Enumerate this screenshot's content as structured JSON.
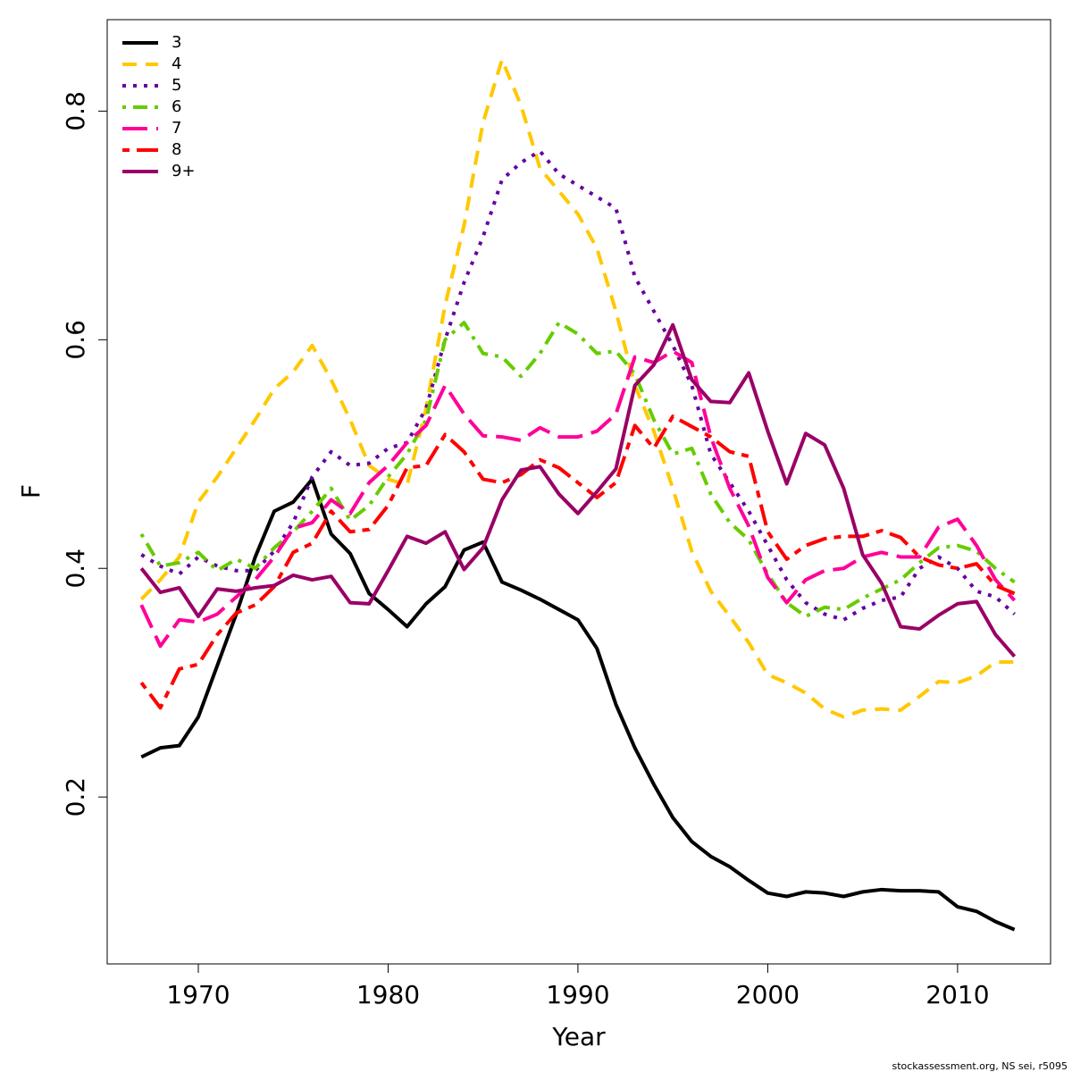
{
  "chart_data": {
    "type": "line",
    "x_label": "Year",
    "y_label": "F",
    "footnote": "stockassessment.org, NS sei, r5095",
    "legend": "top-left",
    "grid": false,
    "x": [
      1967,
      1968,
      1969,
      1970,
      1971,
      1972,
      1973,
      1974,
      1975,
      1976,
      1977,
      1978,
      1979,
      1980,
      1981,
      1982,
      1983,
      1984,
      1985,
      1986,
      1987,
      1988,
      1989,
      1990,
      1991,
      1992,
      1993,
      1994,
      1995,
      1996,
      1997,
      1998,
      1999,
      2000,
      2001,
      2002,
      2003,
      2004,
      2005,
      2006,
      2007,
      2008,
      2009,
      2010,
      2011,
      2012,
      2013
    ],
    "xlim": [
      1965.2,
      2014.9
    ],
    "xticks": [
      1970,
      1980,
      1990,
      2000,
      2010
    ],
    "ylim": [
      0.054,
      0.88
    ],
    "yticks": [
      0.2,
      0.4,
      0.6,
      0.8
    ],
    "series": [
      {
        "name": "3",
        "color": "#000000",
        "line_style": "solid",
        "values": [
          0.235,
          0.243,
          0.245,
          0.27,
          0.315,
          0.36,
          0.41,
          0.45,
          0.458,
          0.478,
          0.43,
          0.413,
          0.378,
          0.364,
          0.349,
          0.369,
          0.384,
          0.416,
          0.423,
          0.388,
          0.381,
          0.373,
          0.364,
          0.355,
          0.33,
          0.281,
          0.243,
          0.211,
          0.182,
          0.161,
          0.148,
          0.139,
          0.127,
          0.116,
          0.113,
          0.117,
          0.116,
          0.113,
          0.117,
          0.119,
          0.118,
          0.118,
          0.117,
          0.104,
          0.1,
          0.091,
          0.084
        ]
      },
      {
        "name": "4",
        "color": "#ffc800",
        "line_style": "dashed",
        "values": [
          0.373,
          0.39,
          0.41,
          0.458,
          0.48,
          0.505,
          0.53,
          0.557,
          0.572,
          0.595,
          0.565,
          0.53,
          0.49,
          0.478,
          0.473,
          0.54,
          0.63,
          0.7,
          0.79,
          0.845,
          0.805,
          0.75,
          0.73,
          0.71,
          0.68,
          0.625,
          0.56,
          0.52,
          0.47,
          0.415,
          0.38,
          0.358,
          0.335,
          0.307,
          0.3,
          0.291,
          0.277,
          0.27,
          0.276,
          0.277,
          0.276,
          0.288,
          0.301,
          0.3,
          0.306,
          0.318,
          0.318
        ]
      },
      {
        "name": "5",
        "color": "#6600a0",
        "line_style": "dotted",
        "values": [
          0.412,
          0.402,
          0.395,
          0.41,
          0.402,
          0.398,
          0.398,
          0.415,
          0.44,
          0.48,
          0.502,
          0.49,
          0.492,
          0.505,
          0.51,
          0.54,
          0.6,
          0.65,
          0.69,
          0.74,
          0.755,
          0.765,
          0.745,
          0.735,
          0.725,
          0.715,
          0.655,
          0.625,
          0.595,
          0.56,
          0.5,
          0.475,
          0.45,
          0.42,
          0.39,
          0.37,
          0.36,
          0.355,
          0.365,
          0.372,
          0.375,
          0.4,
          0.41,
          0.4,
          0.38,
          0.375,
          0.36
        ]
      },
      {
        "name": "6",
        "color": "#66cc00",
        "line_style": "dotdash",
        "values": [
          0.43,
          0.402,
          0.405,
          0.414,
          0.398,
          0.408,
          0.4,
          0.418,
          0.432,
          0.45,
          0.47,
          0.442,
          0.455,
          0.48,
          0.5,
          0.53,
          0.6,
          0.615,
          0.588,
          0.585,
          0.568,
          0.588,
          0.615,
          0.605,
          0.588,
          0.59,
          0.57,
          0.53,
          0.5,
          0.505,
          0.465,
          0.44,
          0.425,
          0.395,
          0.37,
          0.358,
          0.366,
          0.364,
          0.374,
          0.382,
          0.39,
          0.405,
          0.418,
          0.42,
          0.415,
          0.4,
          0.388
        ]
      },
      {
        "name": "7",
        "color": "#ff0099",
        "line_style": "longdash",
        "values": [
          0.368,
          0.332,
          0.355,
          0.353,
          0.36,
          0.375,
          0.39,
          0.41,
          0.435,
          0.44,
          0.46,
          0.448,
          0.475,
          0.49,
          0.51,
          0.525,
          0.56,
          0.535,
          0.516,
          0.515,
          0.512,
          0.523,
          0.515,
          0.515,
          0.52,
          0.535,
          0.585,
          0.58,
          0.59,
          0.58,
          0.515,
          0.47,
          0.437,
          0.392,
          0.37,
          0.39,
          0.398,
          0.4,
          0.41,
          0.414,
          0.41,
          0.41,
          0.436,
          0.443,
          0.42,
          0.39,
          0.372
        ]
      },
      {
        "name": "8",
        "color": "#ff0000",
        "line_style": "twodash",
        "values": [
          0.3,
          0.278,
          0.312,
          0.316,
          0.342,
          0.361,
          0.368,
          0.384,
          0.414,
          0.422,
          0.45,
          0.432,
          0.434,
          0.455,
          0.488,
          0.49,
          0.517,
          0.502,
          0.478,
          0.475,
          0.482,
          0.495,
          0.488,
          0.475,
          0.462,
          0.475,
          0.525,
          0.505,
          0.533,
          0.524,
          0.515,
          0.502,
          0.498,
          0.432,
          0.408,
          0.42,
          0.426,
          0.428,
          0.428,
          0.433,
          0.427,
          0.41,
          0.403,
          0.4,
          0.404,
          0.385,
          0.378
        ]
      },
      {
        "name": "9+",
        "color": "#990066",
        "line_style": "solid",
        "values": [
          0.4,
          0.379,
          0.383,
          0.358,
          0.382,
          0.38,
          0.383,
          0.385,
          0.394,
          0.39,
          0.393,
          0.37,
          0.369,
          0.398,
          0.428,
          0.422,
          0.432,
          0.399,
          0.418,
          0.46,
          0.486,
          0.489,
          0.465,
          0.448,
          0.467,
          0.487,
          0.56,
          0.578,
          0.613,
          0.565,
          0.546,
          0.545,
          0.571,
          0.52,
          0.474,
          0.518,
          0.508,
          0.47,
          0.412,
          0.387,
          0.349,
          0.347,
          0.359,
          0.369,
          0.371,
          0.342,
          0.323
        ]
      }
    ]
  }
}
